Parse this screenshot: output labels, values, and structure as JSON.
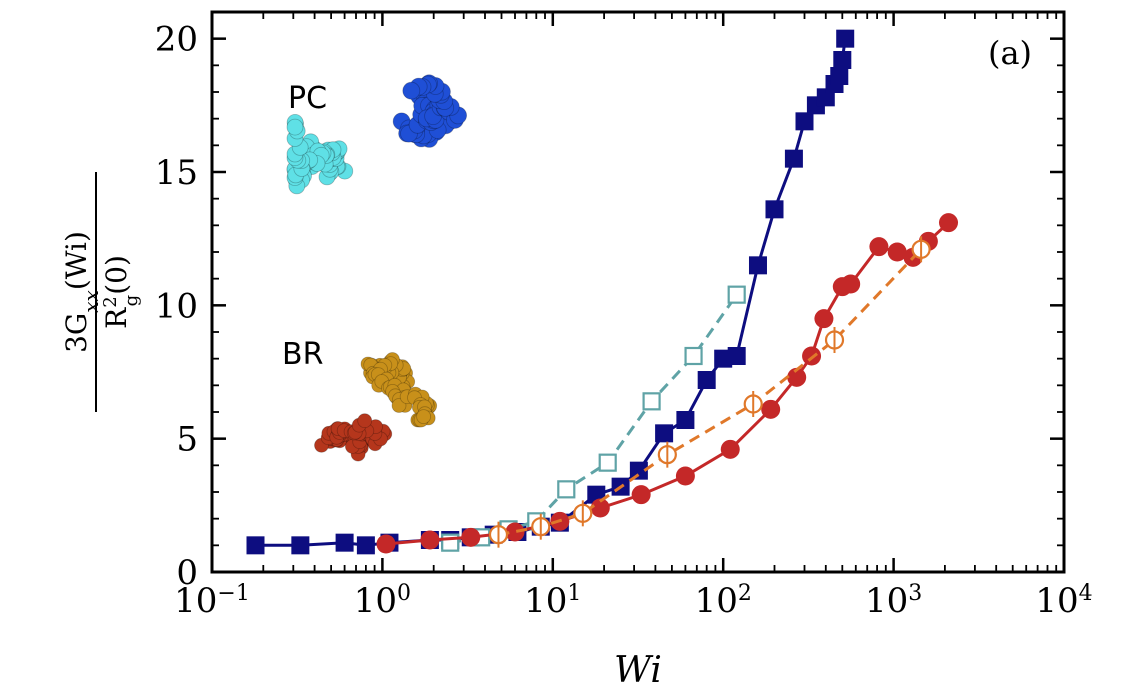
{
  "chart_data": {
    "type": "line",
    "panel_label": "(a)",
    "xlabel": "Wi",
    "ylabel_numerator": "3G_xx(Wi)",
    "ylabel_denominator": "R_g^2(0)",
    "x_scale": "log",
    "xlim": [
      0.1,
      10000
    ],
    "ylim": [
      0,
      21
    ],
    "x_ticks": [
      {
        "value": 0.1,
        "base": "10",
        "exp": "−1"
      },
      {
        "value": 1,
        "base": "10",
        "exp": "0"
      },
      {
        "value": 10,
        "base": "10",
        "exp": "1"
      },
      {
        "value": 100,
        "base": "10",
        "exp": "2"
      },
      {
        "value": 1000,
        "base": "10",
        "exp": "3"
      },
      {
        "value": 10000,
        "base": "10",
        "exp": "4"
      }
    ],
    "y_ticks": [
      0,
      5,
      10,
      15,
      20
    ],
    "grid": false,
    "insets": [
      {
        "label": "PC",
        "colors": [
          "#1f4fd6",
          "#5fe0e6"
        ]
      },
      {
        "label": "BR",
        "colors": [
          "#c8901a",
          "#b5361c"
        ]
      }
    ],
    "series": [
      {
        "color": "#0d0d80",
        "marker": "square-filled",
        "linestyle": "solid",
        "points": [
          [
            0.18,
            1.0
          ],
          [
            0.33,
            1.0
          ],
          [
            0.6,
            1.1
          ],
          [
            0.8,
            1.0
          ],
          [
            1.1,
            1.1
          ],
          [
            1.9,
            1.2
          ],
          [
            2.5,
            1.2
          ],
          [
            3.3,
            1.3
          ],
          [
            4.5,
            1.4
          ],
          [
            6.2,
            1.5
          ],
          [
            8.5,
            1.7
          ],
          [
            11,
            1.85
          ],
          [
            18,
            2.9
          ],
          [
            25,
            3.2
          ],
          [
            32,
            3.8
          ],
          [
            45,
            5.2
          ],
          [
            60,
            5.7
          ],
          [
            80,
            7.2
          ],
          [
            100,
            8.0
          ],
          [
            120,
            8.1
          ],
          [
            160,
            11.5
          ],
          [
            200,
            13.6
          ],
          [
            260,
            15.5
          ],
          [
            300,
            16.9
          ],
          [
            350,
            17.5
          ],
          [
            400,
            17.8
          ],
          [
            450,
            18.3
          ],
          [
            480,
            18.6
          ],
          [
            500,
            19.2
          ],
          [
            520,
            20.0
          ]
        ]
      },
      {
        "color": "#5fa3a6",
        "marker": "square-open",
        "linestyle": "dashed",
        "points": [
          [
            2.5,
            1.1
          ],
          [
            3.8,
            1.3
          ],
          [
            5.5,
            1.6
          ],
          [
            8,
            1.9
          ],
          [
            12,
            3.1
          ],
          [
            21,
            4.1
          ],
          [
            38,
            6.4
          ],
          [
            67,
            8.1
          ],
          [
            120,
            10.4
          ]
        ]
      },
      {
        "color": "#c42828",
        "marker": "circle-filled",
        "linestyle": "solid",
        "points": [
          [
            1.05,
            1.05
          ],
          [
            1.9,
            1.2
          ],
          [
            3.3,
            1.3
          ],
          [
            6,
            1.5
          ],
          [
            11,
            1.9
          ],
          [
            19,
            2.4
          ],
          [
            33,
            2.9
          ],
          [
            60,
            3.6
          ],
          [
            110,
            4.6
          ],
          [
            190,
            6.1
          ],
          [
            270,
            7.3
          ],
          [
            330,
            8.1
          ],
          [
            390,
            9.5
          ],
          [
            500,
            10.7
          ],
          [
            560,
            10.8
          ],
          [
            820,
            12.2
          ],
          [
            1050,
            12.0
          ],
          [
            1300,
            11.8
          ],
          [
            1600,
            12.4
          ],
          [
            2100,
            13.1
          ]
        ]
      },
      {
        "color": "#e0782a",
        "marker": "circle-open",
        "linestyle": "dashed",
        "points": [
          [
            4.8,
            1.4
          ],
          [
            8.5,
            1.7
          ],
          [
            15,
            2.2
          ],
          [
            47,
            4.4
          ],
          [
            150,
            6.3
          ],
          [
            450,
            8.7
          ],
          [
            1450,
            12.1
          ]
        ]
      }
    ]
  }
}
